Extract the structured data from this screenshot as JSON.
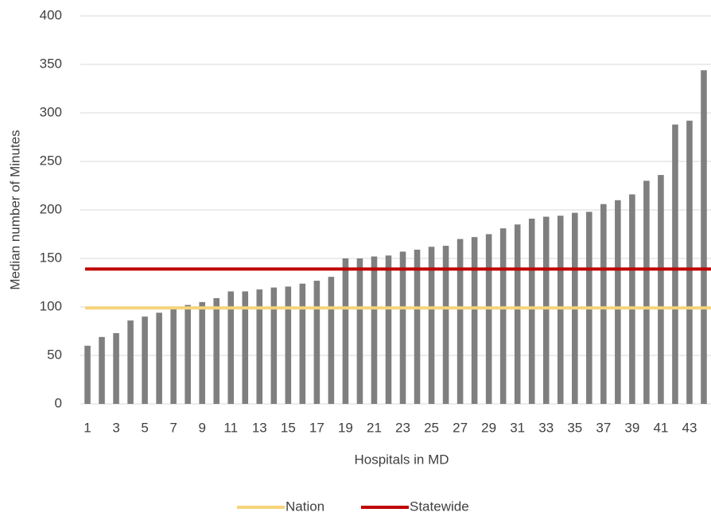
{
  "chart_data": {
    "type": "bar",
    "y_label": "Median number of Minutes",
    "x_label": "Hospitals in MD",
    "categories": [
      "1",
      null,
      "3",
      null,
      "5",
      null,
      "7",
      null,
      "9",
      null,
      "11",
      null,
      "13",
      null,
      "15",
      null,
      "17",
      null,
      "19",
      null,
      "21",
      null,
      "23",
      null,
      "25",
      null,
      "27",
      null,
      "29",
      null,
      "31",
      null,
      "33",
      null,
      "35",
      null,
      "37",
      null,
      "39",
      null,
      "41",
      null,
      "43",
      null
    ],
    "values": [
      60,
      69,
      73,
      86,
      90,
      94,
      99,
      102,
      105,
      109,
      116,
      116,
      118,
      120,
      121,
      124,
      127,
      131,
      150,
      150,
      152,
      153,
      157,
      159,
      162,
      163,
      170,
      172,
      175,
      181,
      185,
      191,
      193,
      194,
      197,
      198,
      206,
      210,
      216,
      230,
      236,
      288,
      292,
      344
    ],
    "color": "#7f7f7f",
    "reference_lines": [
      {
        "name": "Nation",
        "color": "#f6d47a",
        "value": 99
      },
      {
        "name": "Statewide",
        "color": "#c00000",
        "value": 139
      }
    ],
    "ylim": [
      0,
      400
    ],
    "yticks": [
      0,
      50,
      100,
      150,
      200,
      250,
      300,
      350,
      400
    ],
    "grid": true,
    "legend": "bottom"
  }
}
